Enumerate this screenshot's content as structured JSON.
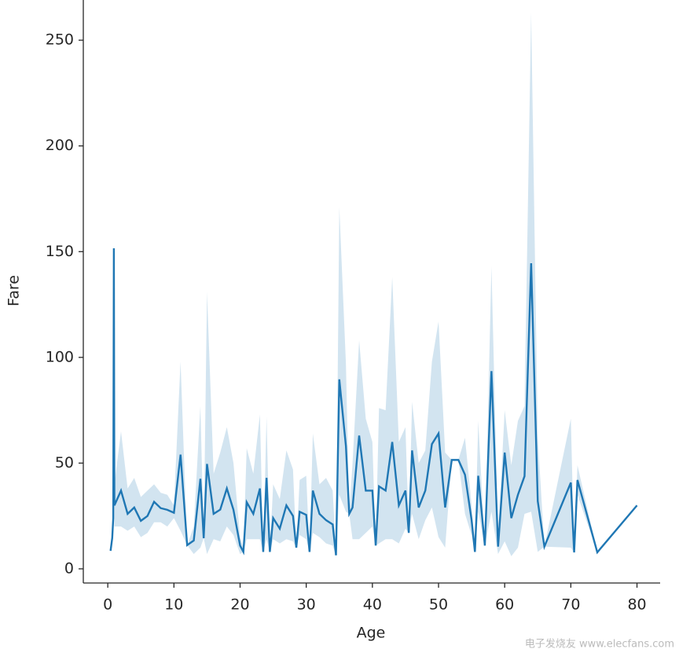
{
  "chart_data": {
    "type": "line",
    "xlabel": "Age",
    "ylabel": "Fare",
    "color": "#1f77b4",
    "xlim": [
      -3.7,
      83.5
    ],
    "ylim": [
      -6.7,
      269
    ],
    "xticks": [
      0,
      10,
      20,
      30,
      40,
      50,
      60,
      70,
      80
    ],
    "yticks": [
      0,
      50,
      100,
      150,
      200,
      250
    ],
    "x": [
      0.42,
      0.67,
      0.83,
      0.92,
      1,
      2,
      3,
      4,
      5,
      6,
      7,
      8,
      9,
      10,
      11,
      12,
      13,
      14,
      14.5,
      15,
      16,
      17,
      18,
      19,
      20,
      20.5,
      21,
      22,
      23,
      23.5,
      24,
      24.5,
      25,
      26,
      27,
      28,
      28.5,
      29,
      30,
      30.5,
      31,
      32,
      33,
      34,
      34.5,
      35,
      36,
      36.5,
      37,
      38,
      39,
      40,
      40.5,
      41,
      42,
      43,
      44,
      45,
      45.5,
      46,
      47,
      48,
      49,
      50,
      51,
      52,
      53,
      54,
      55,
      55.5,
      56,
      57,
      58,
      59,
      60,
      61,
      62,
      63,
      64,
      65,
      66,
      70,
      70.5,
      71,
      74,
      80
    ],
    "values": [
      8.5,
      14.5,
      23.9,
      151.6,
      30,
      37,
      26,
      29,
      22.7,
      25,
      31.7,
      28.7,
      27.9,
      26.5,
      54,
      11.2,
      13.4,
      42.6,
      14.5,
      49.6,
      26,
      28,
      38,
      27.9,
      11,
      8,
      31.5,
      26,
      38,
      8,
      43,
      8,
      24,
      19,
      30,
      25,
      10,
      27,
      25.5,
      8,
      37,
      26,
      23,
      21,
      6.4,
      89.6,
      58,
      26,
      29,
      63,
      37,
      37,
      11,
      39,
      37,
      60,
      30,
      37,
      17,
      56,
      29,
      37,
      59,
      64,
      29,
      51.5,
      51.5,
      44.5,
      23,
      8,
      44,
      11,
      93.5,
      10.5,
      55,
      24,
      35,
      43.8,
      144.5,
      32,
      10.5,
      40.8,
      7.75,
      42,
      7.8,
      30
    ],
    "ci_lower": [
      8.5,
      14.5,
      23.9,
      151.6,
      20,
      20,
      18,
      20,
      15,
      17,
      22,
      22,
      20,
      24,
      18,
      11.2,
      7,
      10,
      14.5,
      7,
      14,
      13,
      20,
      16,
      7,
      8,
      14,
      14,
      14,
      8,
      14,
      8,
      14,
      12,
      14,
      13,
      10,
      16,
      14,
      8,
      17,
      15,
      12,
      11,
      6.4,
      35,
      27,
      26,
      14,
      14,
      17,
      20,
      11,
      12,
      14,
      14,
      12,
      19,
      17,
      26,
      14,
      23,
      29,
      15,
      10,
      51.5,
      51.5,
      26,
      16,
      8,
      27,
      11,
      27,
      7,
      13,
      6,
      10,
      26,
      27,
      8,
      10.5,
      10,
      7.75,
      35,
      7.8,
      30
    ],
    "ci_upper": [
      8.5,
      14.5,
      23.9,
      151.6,
      40,
      65,
      38,
      43,
      34,
      37,
      40,
      36,
      35,
      30,
      98,
      11.2,
      20,
      77,
      14.5,
      131,
      45,
      55,
      67,
      50,
      15,
      10,
      57,
      45,
      73,
      8,
      72,
      8,
      40,
      33,
      56,
      47,
      10,
      42,
      44,
      8,
      64,
      40,
      43,
      37,
      6.4,
      171,
      97,
      26,
      50,
      108,
      71,
      60,
      11,
      76,
      75,
      138,
      60,
      67,
      17,
      79,
      50,
      56,
      98,
      117,
      55,
      51.5,
      51.5,
      62,
      30,
      8,
      70,
      11,
      143,
      15,
      75,
      49,
      70,
      77,
      263,
      62,
      10.5,
      71,
      7.75,
      49,
      7.8,
      30
    ],
    "watermark": "电子发烧友 www.elecfans.com"
  }
}
